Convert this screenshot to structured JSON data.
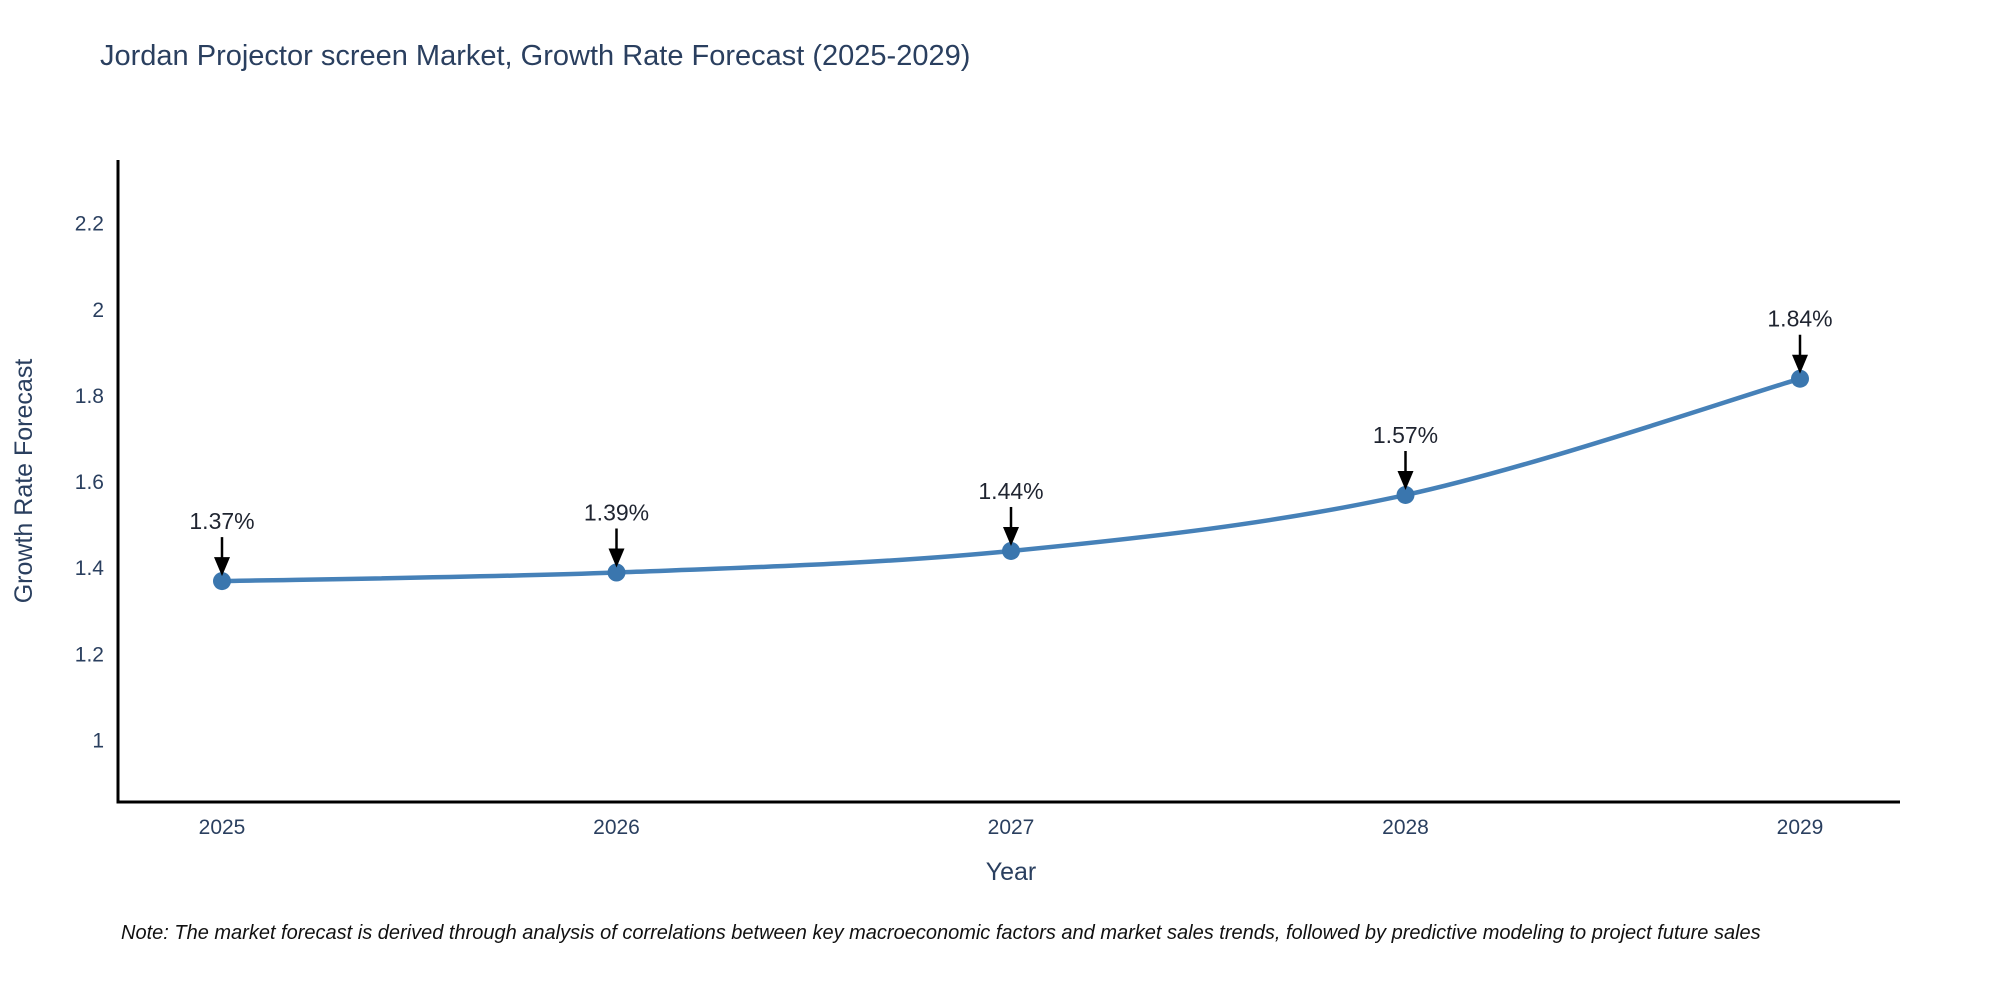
{
  "title": {
    "text": "Jordan Projector screen Market, Growth Rate Forecast (2025-2029)",
    "color": "#2a3f5f"
  },
  "note": {
    "text": "Note: The market forecast is derived through analysis of correlations between key macroeconomic factors and market sales trends, followed by predictive modeling to project future sales"
  },
  "chart_data": {
    "type": "line",
    "title": "Jordan Projector screen Market, Growth Rate Forecast (2025-2029)",
    "xlabel": "Year",
    "ylabel": "Growth Rate Forecast",
    "categories": [
      "2025",
      "2026",
      "2027",
      "2028",
      "2029"
    ],
    "values": [
      1.37,
      1.39,
      1.44,
      1.57,
      1.84
    ],
    "point_labels": [
      "1.37%",
      "1.39%",
      "1.44%",
      "1.57%",
      "1.84%"
    ],
    "yticks": [
      1,
      1.2,
      1.4,
      1.6,
      1.8,
      2,
      2.2
    ],
    "ylim": [
      0.857,
      2.348
    ],
    "grid": false,
    "legend_position": "none",
    "line_color": "#4681b8",
    "marker_color": "#3a76ae",
    "axis_color": "#000000",
    "tick_color": "#2a3f5f",
    "axis_title_color": "#2a3f5f",
    "annotation_text_color": "#1f2430",
    "annotation_arrow_color": "#000000"
  }
}
